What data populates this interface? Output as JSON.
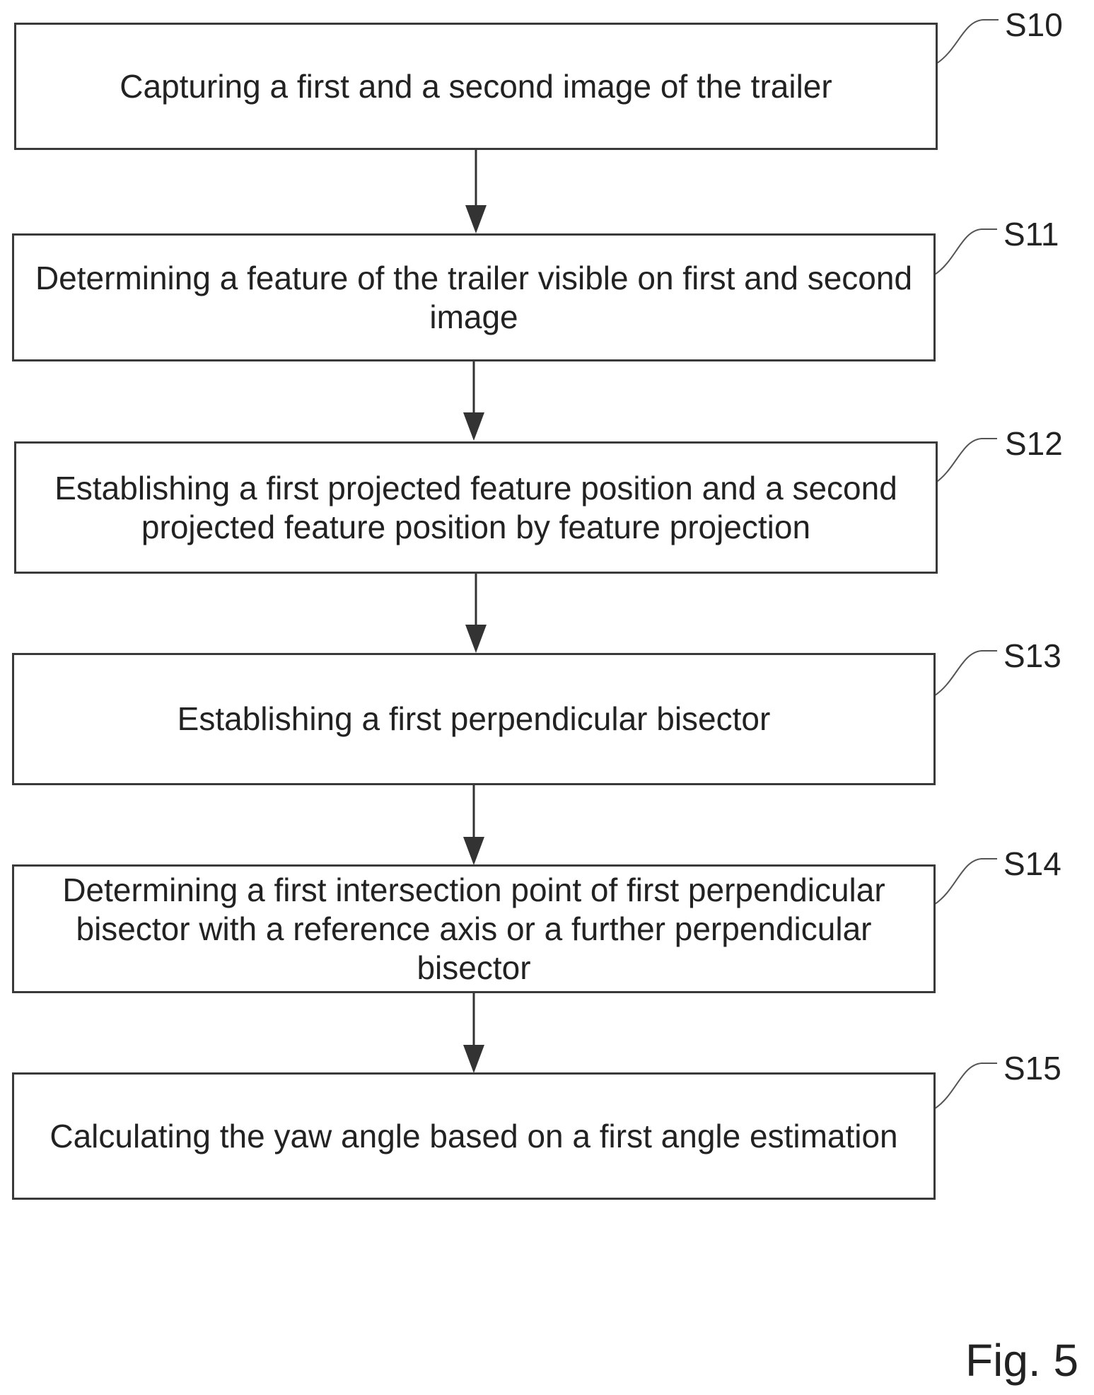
{
  "flowchart": {
    "steps": [
      {
        "label": "S10",
        "text": "Capturing a first and a second image of the trailer"
      },
      {
        "label": "S11",
        "text": "Determining a feature of the trailer visible on first and second image"
      },
      {
        "label": "S12",
        "text": "Establishing a first projected feature position and a second projected feature position by feature projection"
      },
      {
        "label": "S13",
        "text": "Establishing a first perpendicular bisector"
      },
      {
        "label": "S14",
        "text": "Determining a first intersection point of first perpendicular bisector with a reference axis or a further perpendicular bisector"
      },
      {
        "label": "S15",
        "text": "Calculating the yaw angle based on a first angle estimation"
      }
    ],
    "figure_label": "Fig. 5"
  }
}
